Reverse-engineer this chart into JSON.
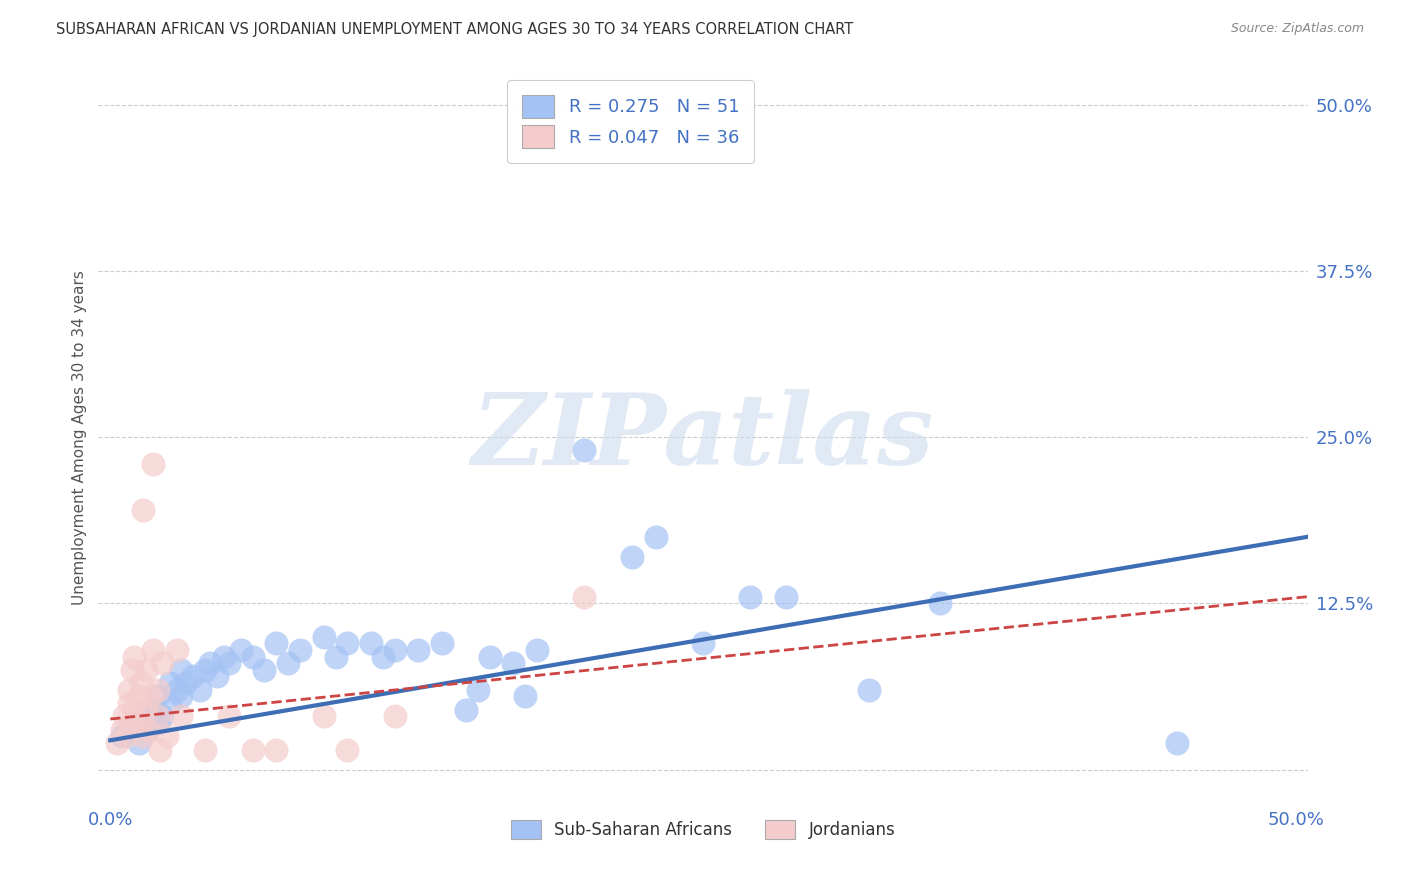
{
  "title": "SUBSAHARAN AFRICAN VS JORDANIAN UNEMPLOYMENT AMONG AGES 30 TO 34 YEARS CORRELATION CHART",
  "source": "Source: ZipAtlas.com",
  "ylabel": "Unemployment Among Ages 30 to 34 years",
  "xlim": [
    -0.005,
    0.505
  ],
  "ylim": [
    -0.025,
    0.525
  ],
  "xticks": [
    0.0,
    0.1,
    0.2,
    0.3,
    0.4,
    0.5
  ],
  "xticklabels": [
    "0.0%",
    "",
    "",
    "",
    "",
    "50.0%"
  ],
  "yticks": [
    0.0,
    0.125,
    0.25,
    0.375,
    0.5
  ],
  "yticklabels": [
    "",
    "12.5%",
    "25.0%",
    "37.5%",
    "50.0%"
  ],
  "background_color": "#ffffff",
  "grid_color": "#cccccc",
  "watermark": "ZIPatlas",
  "legend_r1": "R = 0.275",
  "legend_n1": "N = 51",
  "legend_r2": "R = 0.047",
  "legend_n2": "N = 36",
  "blue_color": "#a4c2f4",
  "pink_color": "#f4cccc",
  "trend_blue": "#3d6eb5",
  "trend_pink": "#cc4444",
  "blue_scatter": [
    [
      0.005,
      0.025
    ],
    [
      0.01,
      0.035
    ],
    [
      0.012,
      0.02
    ],
    [
      0.015,
      0.04
    ],
    [
      0.016,
      0.03
    ],
    [
      0.018,
      0.045
    ],
    [
      0.02,
      0.055
    ],
    [
      0.02,
      0.035
    ],
    [
      0.022,
      0.04
    ],
    [
      0.025,
      0.05
    ],
    [
      0.025,
      0.065
    ],
    [
      0.028,
      0.06
    ],
    [
      0.03,
      0.055
    ],
    [
      0.03,
      0.075
    ],
    [
      0.032,
      0.065
    ],
    [
      0.035,
      0.07
    ],
    [
      0.038,
      0.06
    ],
    [
      0.04,
      0.075
    ],
    [
      0.042,
      0.08
    ],
    [
      0.045,
      0.07
    ],
    [
      0.048,
      0.085
    ],
    [
      0.05,
      0.08
    ],
    [
      0.055,
      0.09
    ],
    [
      0.06,
      0.085
    ],
    [
      0.065,
      0.075
    ],
    [
      0.07,
      0.095
    ],
    [
      0.075,
      0.08
    ],
    [
      0.08,
      0.09
    ],
    [
      0.09,
      0.1
    ],
    [
      0.095,
      0.085
    ],
    [
      0.1,
      0.095
    ],
    [
      0.11,
      0.095
    ],
    [
      0.115,
      0.085
    ],
    [
      0.12,
      0.09
    ],
    [
      0.13,
      0.09
    ],
    [
      0.14,
      0.095
    ],
    [
      0.15,
      0.045
    ],
    [
      0.155,
      0.06
    ],
    [
      0.16,
      0.085
    ],
    [
      0.17,
      0.08
    ],
    [
      0.175,
      0.055
    ],
    [
      0.18,
      0.09
    ],
    [
      0.2,
      0.24
    ],
    [
      0.22,
      0.16
    ],
    [
      0.23,
      0.175
    ],
    [
      0.25,
      0.095
    ],
    [
      0.27,
      0.13
    ],
    [
      0.285,
      0.13
    ],
    [
      0.32,
      0.06
    ],
    [
      0.35,
      0.125
    ],
    [
      0.45,
      0.02
    ]
  ],
  "pink_scatter": [
    [
      0.003,
      0.02
    ],
    [
      0.005,
      0.03
    ],
    [
      0.006,
      0.04
    ],
    [
      0.007,
      0.025
    ],
    [
      0.008,
      0.05
    ],
    [
      0.008,
      0.06
    ],
    [
      0.009,
      0.035
    ],
    [
      0.009,
      0.075
    ],
    [
      0.01,
      0.045
    ],
    [
      0.01,
      0.085
    ],
    [
      0.012,
      0.055
    ],
    [
      0.012,
      0.035
    ],
    [
      0.013,
      0.065
    ],
    [
      0.014,
      0.025
    ],
    [
      0.015,
      0.045
    ],
    [
      0.015,
      0.075
    ],
    [
      0.016,
      0.03
    ],
    [
      0.017,
      0.055
    ],
    [
      0.018,
      0.09
    ],
    [
      0.018,
      0.23
    ],
    [
      0.02,
      0.04
    ],
    [
      0.02,
      0.06
    ],
    [
      0.021,
      0.015
    ],
    [
      0.022,
      0.08
    ],
    [
      0.024,
      0.025
    ],
    [
      0.028,
      0.09
    ],
    [
      0.03,
      0.04
    ],
    [
      0.04,
      0.015
    ],
    [
      0.05,
      0.04
    ],
    [
      0.06,
      0.015
    ],
    [
      0.07,
      0.015
    ],
    [
      0.09,
      0.04
    ],
    [
      0.1,
      0.015
    ],
    [
      0.12,
      0.04
    ],
    [
      0.014,
      0.195
    ],
    [
      0.2,
      0.13
    ]
  ],
  "blue_trend_x": [
    0.0,
    0.505
  ],
  "blue_trend_y": [
    0.022,
    0.175
  ],
  "pink_trend_x": [
    0.0,
    0.505
  ],
  "pink_trend_y": [
    0.038,
    0.13
  ]
}
